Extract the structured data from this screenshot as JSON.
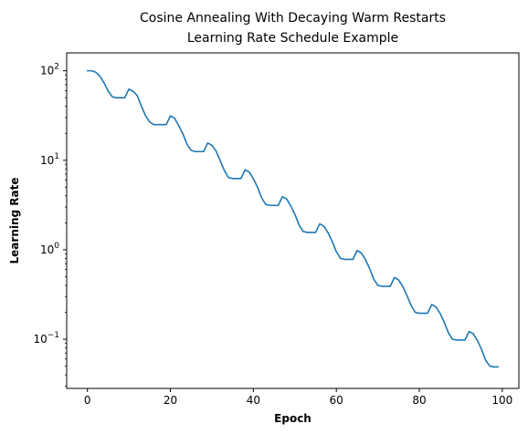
{
  "chart_data": {
    "type": "line",
    "title_line1": "Cosine Annealing With Decaying Warm Restarts",
    "title_line2": "Learning Rate Schedule Example",
    "xlabel": "Epoch",
    "ylabel": "Learning Rate",
    "y_scale": "log",
    "grid": false,
    "xlim": [
      -5,
      104
    ],
    "ylim_log10": [
      -1.55,
      2.2
    ],
    "x_ticks": [
      {
        "value": 0,
        "label": "0"
      },
      {
        "value": 20,
        "label": "20"
      },
      {
        "value": 40,
        "label": "40"
      },
      {
        "value": 60,
        "label": "60"
      },
      {
        "value": 80,
        "label": "80"
      },
      {
        "value": 100,
        "label": "100"
      }
    ],
    "y_major_ticks": [
      {
        "exp": -1,
        "base": "10",
        "sup": "−1"
      },
      {
        "exp": 0,
        "base": "10",
        "sup": "0"
      },
      {
        "exp": 1,
        "base": "10",
        "sup": "1"
      },
      {
        "exp": 2,
        "base": "10",
        "sup": "2"
      }
    ],
    "line_color": "#1f77b4",
    "series": [
      {
        "x": [
          0,
          1,
          2,
          3,
          4,
          5,
          6,
          7,
          8,
          9,
          10,
          11,
          12,
          13,
          14,
          15,
          16,
          17,
          18,
          19,
          20,
          21,
          22,
          23,
          24,
          25,
          26,
          27,
          28,
          29,
          30,
          31,
          32,
          33,
          34,
          35,
          36,
          37,
          38,
          39,
          40,
          41,
          42,
          43,
          44,
          45,
          46,
          47,
          48,
          49,
          50,
          51,
          52,
          53,
          54,
          55,
          56,
          57,
          58,
          59,
          60,
          61,
          62,
          63,
          64,
          65,
          66,
          67,
          68,
          69,
          70,
          71,
          72,
          73,
          74,
          75,
          76,
          77,
          78,
          79,
          80,
          81,
          82,
          83,
          84,
          85,
          86,
          87,
          88,
          89,
          90,
          91,
          92,
          93,
          94,
          95,
          96,
          97,
          98,
          99
        ],
        "values": [
          100,
          100,
          96.5,
          86.9,
          73.4,
          59.3,
          51.2,
          50,
          50,
          50,
          62.5,
          59.0,
          52.8,
          40.4,
          31.5,
          26.8,
          25,
          25,
          25,
          25,
          31.3,
          29.5,
          24.4,
          19.8,
          15.1,
          12.9,
          12.5,
          12.5,
          12.5,
          15.6,
          14.7,
          12.7,
          9.9,
          7.7,
          6.4,
          6.25,
          6.25,
          6.25,
          7.8,
          7.4,
          6.2,
          5.0,
          3.8,
          3.2,
          3.13,
          3.13,
          3.13,
          3.9,
          3.7,
          3.1,
          2.5,
          1.9,
          1.6,
          1.56,
          1.56,
          1.56,
          1.95,
          1.83,
          1.55,
          1.24,
          0.95,
          0.8,
          0.78,
          0.78,
          0.78,
          0.98,
          0.92,
          0.78,
          0.62,
          0.47,
          0.4,
          0.39,
          0.39,
          0.39,
          0.49,
          0.46,
          0.39,
          0.31,
          0.24,
          0.2,
          0.195,
          0.195,
          0.195,
          0.244,
          0.23,
          0.195,
          0.155,
          0.118,
          0.1,
          0.098,
          0.098,
          0.098,
          0.122,
          0.115,
          0.097,
          0.077,
          0.058,
          0.05,
          0.049,
          0.049
        ]
      }
    ]
  }
}
